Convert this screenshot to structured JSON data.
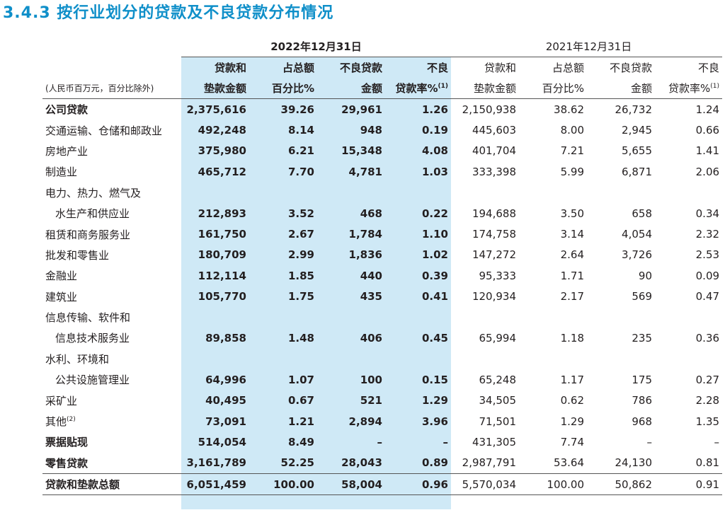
{
  "title": "3.4.3 按行业划分的贷款及不良贷款分布情况",
  "header": {
    "year_2022": "2022年12月31日",
    "year_2021": "2021年12月31日",
    "unit_note": "(人民币百万元，百分比除外)",
    "col1_l1": "贷款和",
    "col1_l2": "垫款金额",
    "col2_l1": "占总额",
    "col2_l2": "百分比%",
    "col3_l1": "不良贷款",
    "col3_l2": "金额",
    "col4_l1": "不良",
    "col4_l2": "贷款率%",
    "col4_note": "(1)"
  },
  "rows": [
    {
      "label": "公司贷款",
      "v": [
        "2,375,616",
        "39.26",
        "29,961",
        "1.26",
        "2,150,938",
        "38.62",
        "26,732",
        "1.24"
      ]
    },
    {
      "label": "交通运输、仓储和邮政业",
      "v": [
        "492,248",
        "8.14",
        "948",
        "0.19",
        "445,603",
        "8.00",
        "2,945",
        "0.66"
      ]
    },
    {
      "label": "房地产业",
      "v": [
        "375,980",
        "6.21",
        "15,348",
        "4.08",
        "401,704",
        "7.21",
        "5,655",
        "1.41"
      ]
    },
    {
      "label": "制造业",
      "v": [
        "465,712",
        "7.70",
        "4,781",
        "1.03",
        "333,398",
        "5.99",
        "6,871",
        "2.06"
      ]
    },
    {
      "label": "电力、热力、燃气及"
    },
    {
      "label": "水生产和供应业",
      "v": [
        "212,893",
        "3.52",
        "468",
        "0.22",
        "194,688",
        "3.50",
        "658",
        "0.34"
      ]
    },
    {
      "label": "租赁和商务服务业",
      "v": [
        "161,750",
        "2.67",
        "1,784",
        "1.10",
        "174,758",
        "3.14",
        "4,054",
        "2.32"
      ]
    },
    {
      "label": "批发和零售业",
      "v": [
        "180,709",
        "2.99",
        "1,836",
        "1.02",
        "147,272",
        "2.64",
        "3,726",
        "2.53"
      ]
    },
    {
      "label": "金融业",
      "v": [
        "112,114",
        "1.85",
        "440",
        "0.39",
        "95,333",
        "1.71",
        "90",
        "0.09"
      ]
    },
    {
      "label": "建筑业",
      "v": [
        "105,770",
        "1.75",
        "435",
        "0.41",
        "120,934",
        "2.17",
        "569",
        "0.47"
      ]
    },
    {
      "label": "信息传输、软件和"
    },
    {
      "label": "信息技术服务业",
      "v": [
        "89,858",
        "1.48",
        "406",
        "0.45",
        "65,994",
        "1.18",
        "235",
        "0.36"
      ]
    },
    {
      "label": "水利、环境和"
    },
    {
      "label": "公共设施管理业",
      "v": [
        "64,996",
        "1.07",
        "100",
        "0.15",
        "65,248",
        "1.17",
        "175",
        "0.27"
      ]
    },
    {
      "label": "采矿业",
      "v": [
        "40,495",
        "0.67",
        "521",
        "1.29",
        "34,505",
        "0.62",
        "786",
        "2.28"
      ]
    },
    {
      "label": "其他",
      "note": "(2)",
      "v": [
        "73,091",
        "1.21",
        "2,894",
        "3.96",
        "71,501",
        "1.29",
        "968",
        "1.35"
      ]
    },
    {
      "label": "票据贴现",
      "v": [
        "514,054",
        "8.49",
        "–",
        "–",
        "431,305",
        "7.74",
        "–",
        "–"
      ]
    },
    {
      "label": "零售贷款",
      "v": [
        "3,161,789",
        "52.25",
        "28,043",
        "0.89",
        "2,987,791",
        "53.64",
        "24,130",
        "0.81"
      ]
    },
    {
      "label": "贷款和垫款总额",
      "v": [
        "6,051,459",
        "100.00",
        "58,004",
        "0.96",
        "5,570,034",
        "100.00",
        "50,862",
        "0.91"
      ]
    }
  ]
}
